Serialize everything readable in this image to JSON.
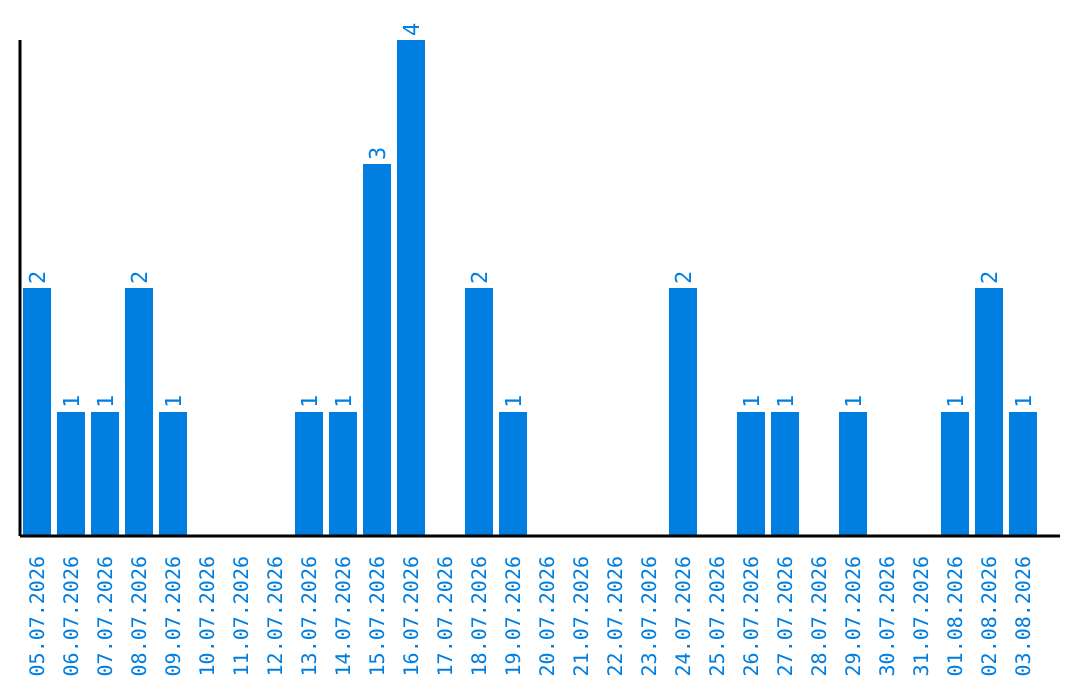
{
  "chart_data": {
    "type": "bar",
    "categories": [
      "05.07.2026",
      "06.07.2026",
      "07.07.2026",
      "08.07.2026",
      "09.07.2026",
      "10.07.2026",
      "11.07.2026",
      "12.07.2026",
      "13.07.2026",
      "14.07.2026",
      "15.07.2026",
      "16.07.2026",
      "17.07.2026",
      "18.07.2026",
      "19.07.2026",
      "20.07.2026",
      "21.07.2026",
      "22.07.2026",
      "23.07.2026",
      "24.07.2026",
      "25.07.2026",
      "26.07.2026",
      "27.07.2026",
      "28.07.2026",
      "29.07.2026",
      "30.07.2026",
      "31.07.2026",
      "01.08.2026",
      "02.08.2026",
      "03.08.2026"
    ],
    "values": [
      2,
      1,
      1,
      2,
      1,
      0,
      0,
      0,
      1,
      1,
      3,
      4,
      0,
      2,
      1,
      0,
      0,
      0,
      0,
      2,
      0,
      1,
      1,
      0,
      1,
      0,
      0,
      1,
      2,
      1
    ],
    "value_labels": [
      "2",
      "1",
      "1",
      "2",
      "1",
      null,
      null,
      null,
      "1",
      "1",
      "3",
      "4",
      null,
      "2",
      "1",
      null,
      null,
      null,
      null,
      "2",
      null,
      "1",
      "1",
      null,
      "1",
      null,
      null,
      "1",
      "2",
      "1"
    ],
    "color": "#007fe0",
    "tick_labels": "x",
    "grid": false,
    "legend": false
  }
}
